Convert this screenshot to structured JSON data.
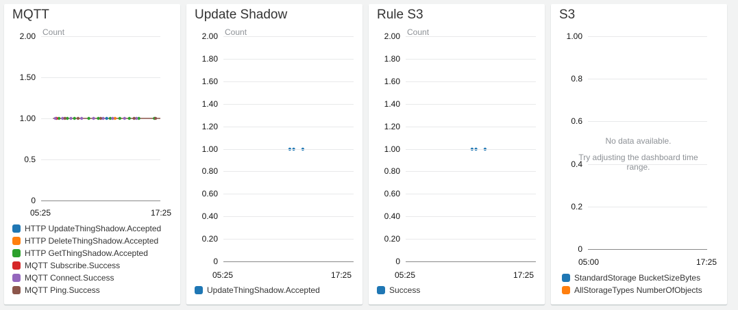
{
  "widgets": [
    {
      "title": "MQTT",
      "unit": "Count",
      "yticks": [
        "2.00",
        "1.50",
        "1.00",
        "0.5",
        "0"
      ],
      "xticks": [
        "05:25",
        "17:25"
      ],
      "legend": [
        {
          "label": "HTTP UpdateThingShadow.Accepted",
          "color": "#1f77b4"
        },
        {
          "label": "HTTP DeleteThingShadow.Accepted",
          "color": "#ff7f0e"
        },
        {
          "label": "HTTP GetThingShadow.Accepted",
          "color": "#2ca02c"
        },
        {
          "label": "MQTT Subscribe.Success",
          "color": "#d62728"
        },
        {
          "label": "MQTT Connect.Success",
          "color": "#9467bd"
        },
        {
          "label": "MQTT Ping.Success",
          "color": "#8c564b"
        }
      ]
    },
    {
      "title": "Update Shadow",
      "unit": "Count",
      "yticks": [
        "2.00",
        "1.80",
        "1.60",
        "1.40",
        "1.20",
        "1.00",
        "0.80",
        "0.60",
        "0.40",
        "0.20",
        "0"
      ],
      "xticks": [
        "05:25",
        "17:25"
      ],
      "legend": [
        {
          "label": "UpdateThingShadow.Accepted",
          "color": "#1f77b4"
        }
      ]
    },
    {
      "title": "Rule S3",
      "unit": "Count",
      "yticks": [
        "2.00",
        "1.80",
        "1.60",
        "1.40",
        "1.20",
        "1.00",
        "0.80",
        "0.60",
        "0.40",
        "0.20",
        "0"
      ],
      "xticks": [
        "05:25",
        "17:25"
      ],
      "legend": [
        {
          "label": "Success",
          "color": "#1f77b4"
        }
      ]
    },
    {
      "title": "S3",
      "yticks": [
        "1.00",
        "0.8",
        "0.6",
        "0.4",
        "0.2",
        "0"
      ],
      "xticks": [
        "05:00",
        "17:25"
      ],
      "no_data": "No data available.",
      "no_data_hint": "Try adjusting the dashboard time range.",
      "legend": [
        {
          "label": "StandardStorage BucketSizeBytes",
          "color": "#1f77b4"
        },
        {
          "label": "AllStorageTypes NumberOfObjects",
          "color": "#ff7f0e"
        }
      ]
    }
  ],
  "chart_data": [
    {
      "type": "line",
      "title": "MQTT",
      "ylabel": "Count",
      "ylim": [
        0,
        2
      ],
      "x_range": [
        "05:25",
        "17:25"
      ],
      "series": [
        {
          "name": "HTTP UpdateThingShadow.Accepted",
          "x": [
            0.55
          ],
          "values": [
            1
          ]
        },
        {
          "name": "HTTP DeleteThingShadow.Accepted",
          "x": [
            0.62
          ],
          "values": [
            1
          ]
        },
        {
          "name": "HTTP GetThingShadow.Accepted",
          "x": [
            0.15,
            0.22,
            0.28,
            0.4,
            0.48,
            0.58,
            0.66,
            0.74,
            0.82,
            0.95
          ],
          "values": [
            1,
            1,
            1,
            1,
            1,
            1,
            1,
            1,
            1,
            1
          ]
        },
        {
          "name": "MQTT Subscribe.Success",
          "x": [
            0.13
          ],
          "values": [
            1
          ]
        },
        {
          "name": "MQTT Connect.Success",
          "x": [
            0.12,
            0.18,
            0.25,
            0.34,
            0.44,
            0.52,
            0.6,
            0.7,
            0.8
          ],
          "values": [
            1,
            1,
            1,
            1,
            1,
            1,
            1,
            1,
            1
          ]
        },
        {
          "name": "MQTT Ping.Success",
          "x": [
            0.2,
            0.31,
            0.5,
            0.78,
            0.96
          ],
          "values": [
            1,
            1,
            1,
            1,
            1
          ]
        }
      ]
    },
    {
      "type": "scatter",
      "title": "Update Shadow",
      "ylabel": "Count",
      "ylim": [
        0,
        2
      ],
      "x_range": [
        "05:25",
        "17:25"
      ],
      "series": [
        {
          "name": "UpdateThingShadow.Accepted",
          "x": [
            0.51,
            0.54,
            0.61
          ],
          "values": [
            1,
            1,
            1
          ]
        }
      ]
    },
    {
      "type": "scatter",
      "title": "Rule S3",
      "ylabel": "Count",
      "ylim": [
        0,
        2
      ],
      "x_range": [
        "05:25",
        "17:25"
      ],
      "series": [
        {
          "name": "Success",
          "x": [
            0.51,
            0.54,
            0.61
          ],
          "values": [
            1,
            1,
            1
          ]
        }
      ]
    },
    {
      "type": "line",
      "title": "S3",
      "ylim": [
        0,
        1
      ],
      "x_range": [
        "05:00",
        "17:25"
      ],
      "series": [
        {
          "name": "StandardStorage BucketSizeBytes",
          "x": [],
          "values": []
        },
        {
          "name": "AllStorageTypes NumberOfObjects",
          "x": [],
          "values": []
        }
      ]
    }
  ]
}
